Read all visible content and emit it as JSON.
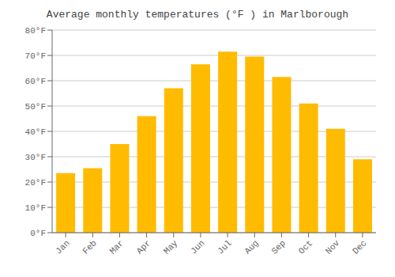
{
  "chart_data": {
    "type": "bar",
    "title": "Average monthly temperatures (°F ) in Marlborough",
    "categories": [
      "Jan",
      "Feb",
      "Mar",
      "Apr",
      "May",
      "Jun",
      "Jul",
      "Aug",
      "Sep",
      "Oct",
      "Nov",
      "Dec"
    ],
    "values": [
      23.5,
      25.5,
      35.0,
      46.0,
      57.0,
      66.5,
      71.5,
      69.5,
      61.5,
      51.0,
      41.0,
      29.0
    ],
    "color": "#FFBB00",
    "ylim": [
      0,
      80
    ],
    "yticks": [
      {
        "value": 0,
        "label": "0°F"
      },
      {
        "value": 10,
        "label": "10°F"
      },
      {
        "value": 20,
        "label": "20°F"
      },
      {
        "value": 30,
        "label": "30°F"
      },
      {
        "value": 40,
        "label": "40°F"
      },
      {
        "value": 50,
        "label": "50°F"
      },
      {
        "value": 60,
        "label": "60°F"
      },
      {
        "value": 70,
        "label": "70°F"
      },
      {
        "value": 80,
        "label": "80°F"
      }
    ],
    "grid": true
  }
}
